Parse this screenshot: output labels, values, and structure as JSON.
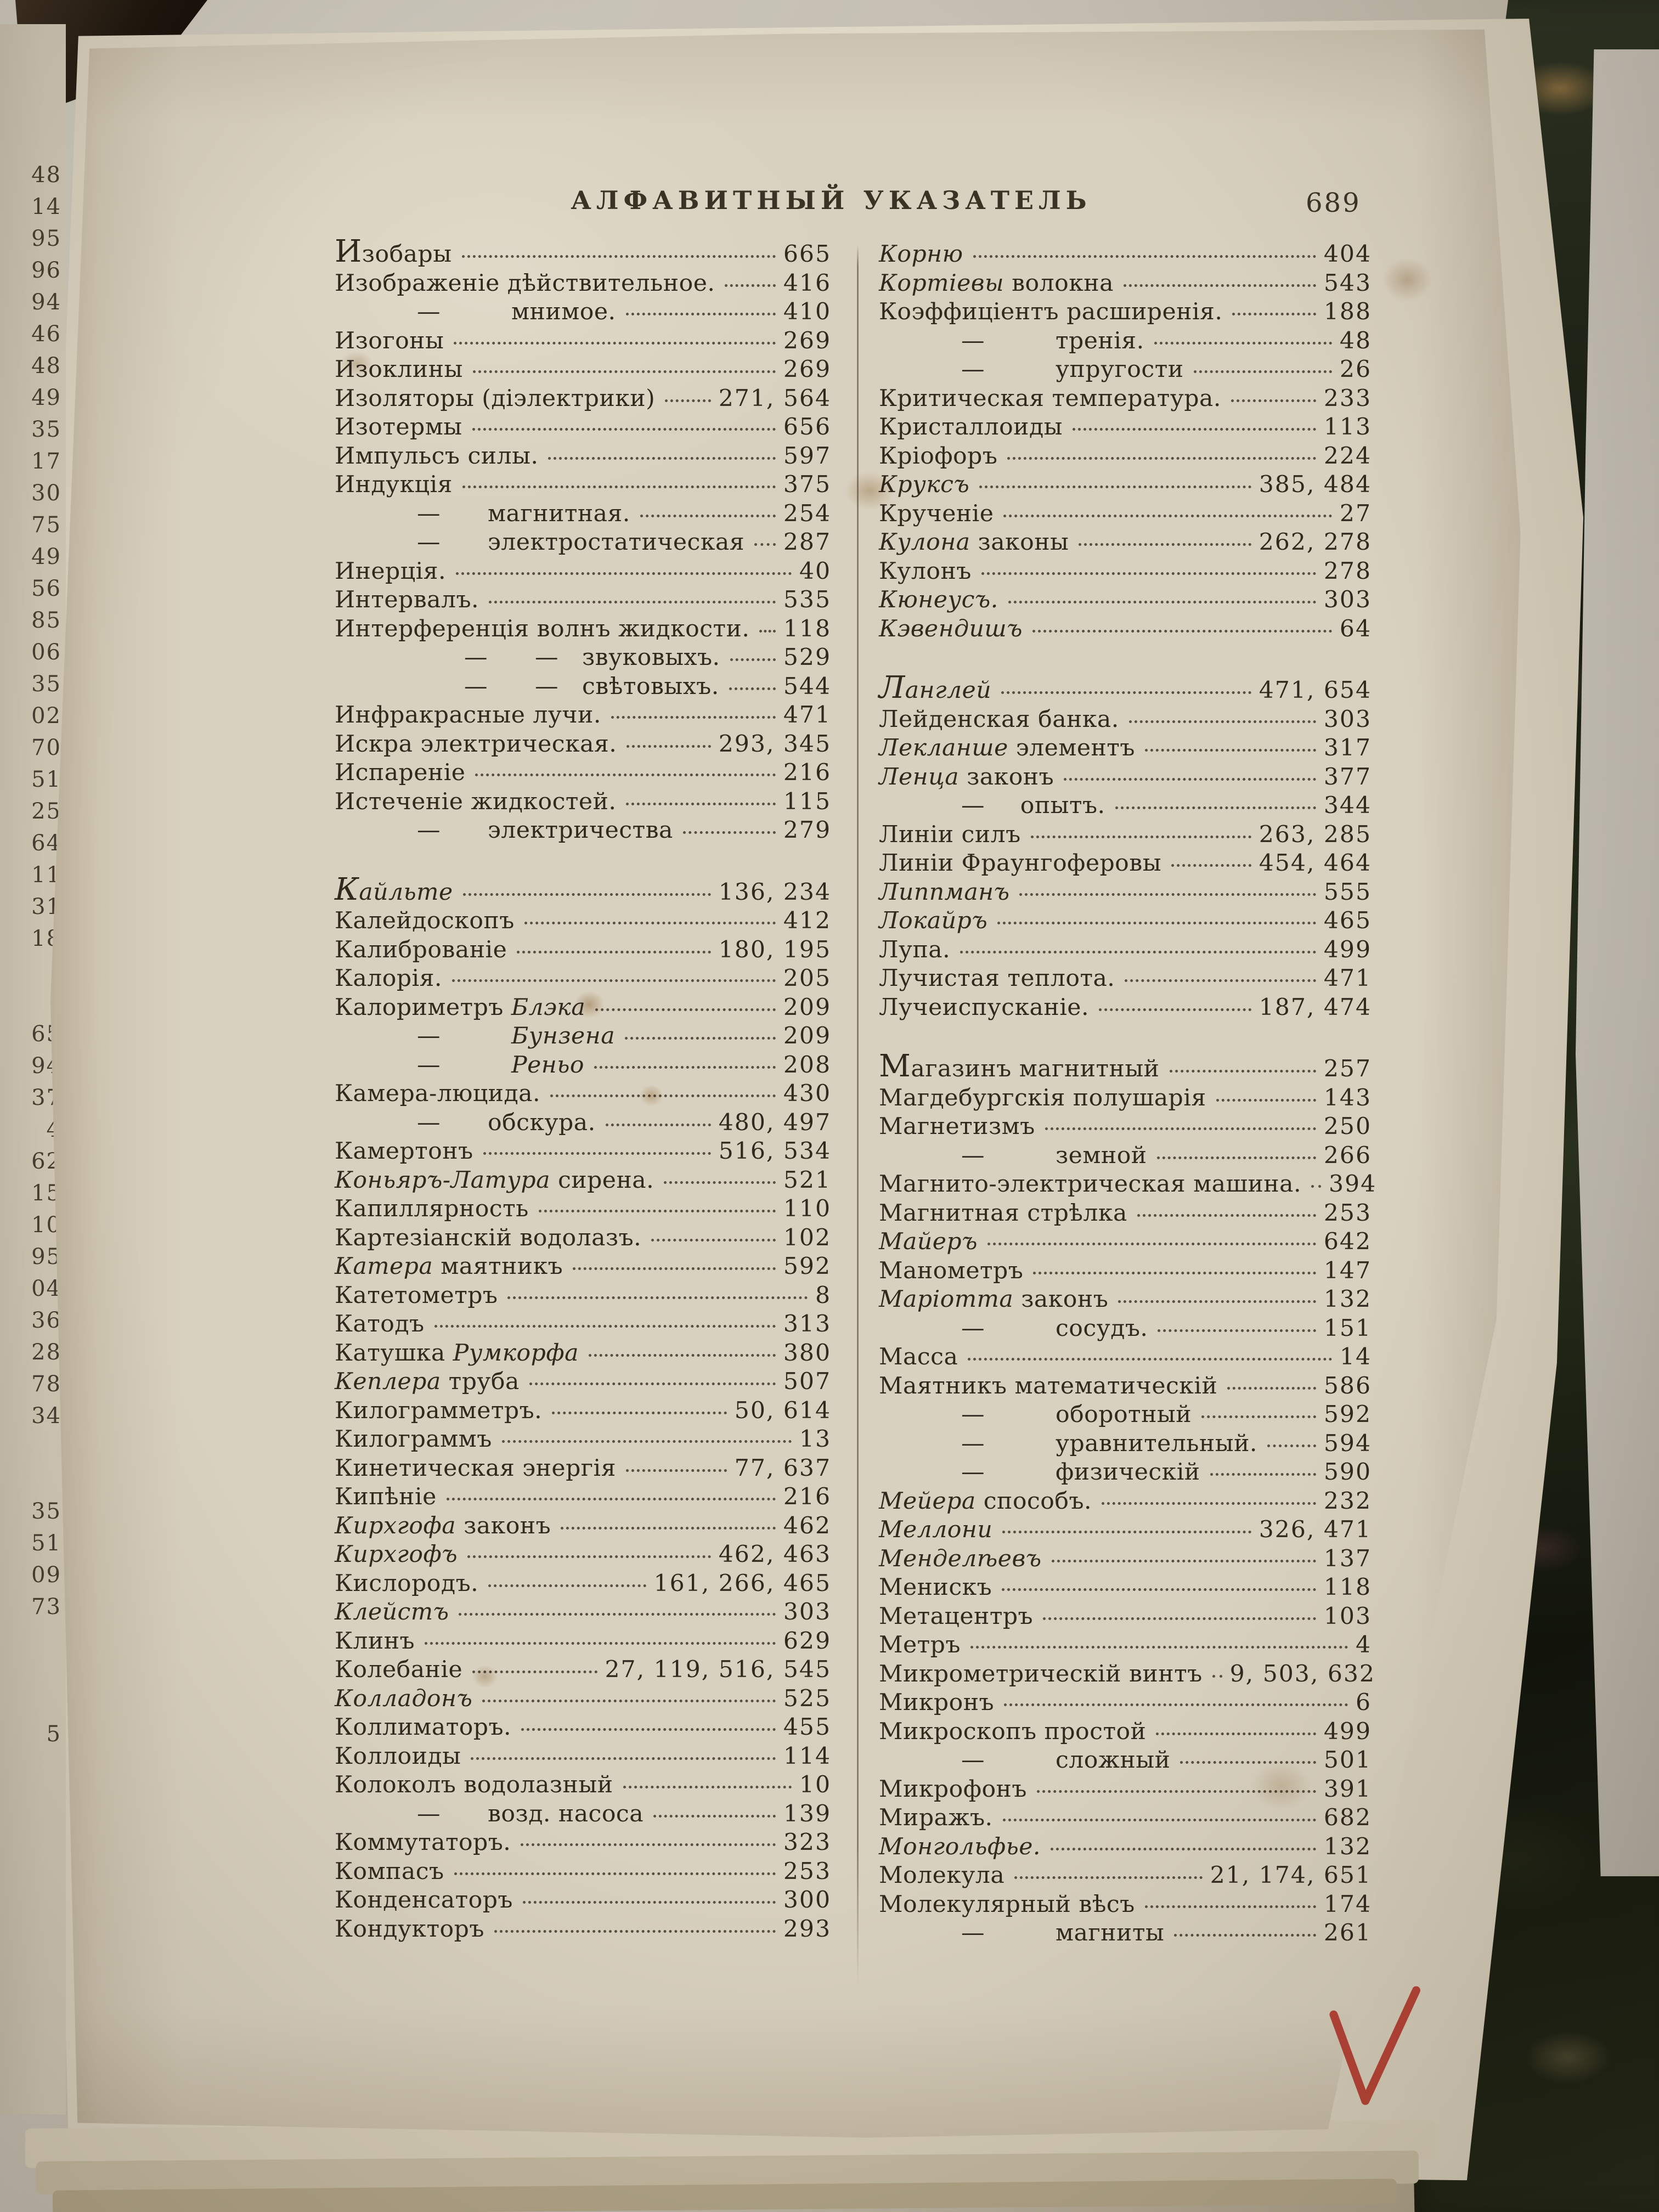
{
  "header": {
    "title": "АЛФАВИТНЫЙ УКАЗАТЕЛЬ",
    "page_number": "689"
  },
  "index": {
    "left": [
      {
        "s": [
          [
            "Изобары",
            0
          ]
        ],
        "p": "665",
        "lead": 1
      },
      {
        "s": [
          [
            "Изображеніе дѣйствительное.",
            0
          ]
        ],
        "p": "416"
      },
      {
        "s": [
          [
            "—   мнимое.",
            0
          ]
        ],
        "p": "410",
        "ind": 1
      },
      {
        "s": [
          [
            "Изогоны",
            0
          ]
        ],
        "p": "269"
      },
      {
        "s": [
          [
            "Изоклины",
            0
          ]
        ],
        "p": "269"
      },
      {
        "s": [
          [
            "Изоляторы (діэлектрики)",
            0
          ]
        ],
        "p": "271, 564"
      },
      {
        "s": [
          [
            "Изотермы",
            0
          ]
        ],
        "p": "656"
      },
      {
        "s": [
          [
            "Импульсъ силы.",
            0
          ]
        ],
        "p": "597"
      },
      {
        "s": [
          [
            "Индукція",
            0
          ]
        ],
        "p": "375"
      },
      {
        "s": [
          [
            "—  магнитная.",
            0
          ]
        ],
        "p": "254",
        "ind": 1
      },
      {
        "s": [
          [
            "—  электростатическая",
            0
          ]
        ],
        "p": "287",
        "ind": 1
      },
      {
        "s": [
          [
            "Инерція.",
            0
          ]
        ],
        "p": "40"
      },
      {
        "s": [
          [
            "Интервалъ.",
            0
          ]
        ],
        "p": "535"
      },
      {
        "s": [
          [
            "Интерференція волнъ жидкости.",
            0
          ]
        ],
        "p": "118"
      },
      {
        "s": [
          [
            "—  — звуковыхъ.",
            0
          ]
        ],
        "p": "529",
        "ind": 2
      },
      {
        "s": [
          [
            "—  — свѣтовыхъ.",
            0
          ]
        ],
        "p": "544",
        "ind": 2
      },
      {
        "s": [
          [
            "Инфракрасные лучи.",
            0
          ]
        ],
        "p": "471"
      },
      {
        "s": [
          [
            "Искра электрическая.",
            0
          ]
        ],
        "p": "293, 345"
      },
      {
        "s": [
          [
            "Испареніе",
            0
          ]
        ],
        "p": "216"
      },
      {
        "s": [
          [
            "Истеченіе жидкостей.",
            0
          ]
        ],
        "p": "115"
      },
      {
        "s": [
          [
            "—  электричества",
            0
          ]
        ],
        "p": "279",
        "ind": 1
      },
      {
        "s": [
          [
            "Кайльте",
            1
          ]
        ],
        "p": "136, 234",
        "gap": 1,
        "lead": 1
      },
      {
        "s": [
          [
            "Калейдоскопъ",
            0
          ]
        ],
        "p": "412"
      },
      {
        "s": [
          [
            "Калиброваніе",
            0
          ]
        ],
        "p": "180, 195"
      },
      {
        "s": [
          [
            "Калорія.",
            0
          ]
        ],
        "p": "205"
      },
      {
        "s": [
          [
            "Калориметръ ",
            0
          ],
          [
            "Блэка",
            1
          ]
        ],
        "p": "209"
      },
      {
        "s": [
          [
            "—   ",
            0
          ],
          [
            "Бунзена",
            1
          ]
        ],
        "p": "209",
        "ind": 1
      },
      {
        "s": [
          [
            "—   ",
            0
          ],
          [
            "Реньо",
            1
          ]
        ],
        "p": "208",
        "ind": 1
      },
      {
        "s": [
          [
            "Камера-люцида.",
            0
          ]
        ],
        "p": "430"
      },
      {
        "s": [
          [
            "—  обскура.",
            0
          ]
        ],
        "p": "480, 497",
        "ind": 1
      },
      {
        "s": [
          [
            "Камертонъ",
            0
          ]
        ],
        "p": "516, 534"
      },
      {
        "s": [
          [
            "Коньяръ-Латура",
            1
          ],
          [
            " сирена.",
            0
          ]
        ],
        "p": "521"
      },
      {
        "s": [
          [
            "Капиллярность",
            0
          ]
        ],
        "p": "110"
      },
      {
        "s": [
          [
            "Картезіанскій водолазъ.",
            0
          ]
        ],
        "p": "102"
      },
      {
        "s": [
          [
            "Катера",
            1
          ],
          [
            " маятникъ",
            0
          ]
        ],
        "p": "592"
      },
      {
        "s": [
          [
            "Катетометръ",
            0
          ]
        ],
        "p": "8"
      },
      {
        "s": [
          [
            "Катодъ",
            0
          ]
        ],
        "p": "313"
      },
      {
        "s": [
          [
            "Катушка ",
            0
          ],
          [
            "Румкорфа",
            1
          ]
        ],
        "p": "380"
      },
      {
        "s": [
          [
            "Кеплера",
            1
          ],
          [
            " труба",
            0
          ]
        ],
        "p": "507"
      },
      {
        "s": [
          [
            "Килограмметръ.",
            0
          ]
        ],
        "p": "50, 614"
      },
      {
        "s": [
          [
            "Килограммъ",
            0
          ]
        ],
        "p": "13"
      },
      {
        "s": [
          [
            "Кинетическая энергія",
            0
          ]
        ],
        "p": "77, 637"
      },
      {
        "s": [
          [
            "Кипѣніе",
            0
          ]
        ],
        "p": "216"
      },
      {
        "s": [
          [
            "Кирхгофа",
            1
          ],
          [
            " законъ",
            0
          ]
        ],
        "p": "462"
      },
      {
        "s": [
          [
            "Кирхгофъ",
            1
          ]
        ],
        "p": "462, 463"
      },
      {
        "s": [
          [
            "Кислородъ.",
            0
          ]
        ],
        "p": "161, 266, 465"
      },
      {
        "s": [
          [
            "Клейстъ",
            1
          ]
        ],
        "p": "303"
      },
      {
        "s": [
          [
            "Клинъ",
            0
          ]
        ],
        "p": "629"
      },
      {
        "s": [
          [
            "Колебаніе",
            0
          ]
        ],
        "p": "27, 119, 516, 545"
      },
      {
        "s": [
          [
            "Колладонъ",
            1
          ]
        ],
        "p": "525"
      },
      {
        "s": [
          [
            "Коллиматоръ.",
            0
          ]
        ],
        "p": "455"
      },
      {
        "s": [
          [
            "Коллоиды",
            0
          ]
        ],
        "p": "114"
      },
      {
        "s": [
          [
            "Колоколъ водолазный",
            0
          ]
        ],
        "p": "10"
      },
      {
        "s": [
          [
            "—  возд. насоса",
            0
          ]
        ],
        "p": "139",
        "ind": 1
      },
      {
        "s": [
          [
            "Коммутаторъ.",
            0
          ]
        ],
        "p": "323"
      },
      {
        "s": [
          [
            "Компасъ",
            0
          ]
        ],
        "p": "253"
      },
      {
        "s": [
          [
            "Конденсаторъ",
            0
          ]
        ],
        "p": "300"
      },
      {
        "s": [
          [
            "Кондукторъ",
            0
          ]
        ],
        "p": "293"
      }
    ],
    "right": [
      {
        "s": [
          [
            "Корню",
            1
          ]
        ],
        "p": "404"
      },
      {
        "s": [
          [
            "Кортіевы",
            1
          ],
          [
            " волокна",
            0
          ]
        ],
        "p": "543"
      },
      {
        "s": [
          [
            "Коэффиціентъ расширенія.",
            0
          ]
        ],
        "p": "188"
      },
      {
        "s": [
          [
            "—   тренія.",
            0
          ]
        ],
        "p": "48",
        "ind": 1
      },
      {
        "s": [
          [
            "—   упругости",
            0
          ]
        ],
        "p": "26",
        "ind": 1
      },
      {
        "s": [
          [
            "Критическая температура.",
            0
          ]
        ],
        "p": "233"
      },
      {
        "s": [
          [
            "Кристаллоиды",
            0
          ]
        ],
        "p": "113"
      },
      {
        "s": [
          [
            "Кріофоръ",
            0
          ]
        ],
        "p": "224"
      },
      {
        "s": [
          [
            "Круксъ",
            1
          ]
        ],
        "p": "385, 484"
      },
      {
        "s": [
          [
            "Крученіе",
            0
          ]
        ],
        "p": "27"
      },
      {
        "s": [
          [
            "Кулона",
            1
          ],
          [
            " законы",
            0
          ]
        ],
        "p": "262, 278"
      },
      {
        "s": [
          [
            "Кулонъ",
            0
          ]
        ],
        "p": "278"
      },
      {
        "s": [
          [
            "Кюнеусъ.",
            1
          ]
        ],
        "p": "303"
      },
      {
        "s": [
          [
            "Кэвендишъ",
            1
          ]
        ],
        "p": "64"
      },
      {
        "s": [
          [
            "Ланглей",
            1
          ]
        ],
        "p": "471, 654",
        "gap": 1,
        "lead": 1
      },
      {
        "s": [
          [
            "Лейденская банка.",
            0
          ]
        ],
        "p": "303"
      },
      {
        "s": [
          [
            "Лекланше",
            1
          ],
          [
            " элементъ",
            0
          ]
        ],
        "p": "317"
      },
      {
        "s": [
          [
            "Ленца",
            1
          ],
          [
            " законъ",
            0
          ]
        ],
        "p": "377"
      },
      {
        "s": [
          [
            "—  опытъ.",
            0
          ]
        ],
        "p": "344",
        "ind": 1
      },
      {
        "s": [
          [
            "Линіи силъ",
            0
          ]
        ],
        "p": "263, 285"
      },
      {
        "s": [
          [
            "Линіи Фраунгоферовы",
            0
          ]
        ],
        "p": "454, 464"
      },
      {
        "s": [
          [
            "Липпманъ",
            1
          ]
        ],
        "p": "555"
      },
      {
        "s": [
          [
            "Локайръ",
            1
          ]
        ],
        "p": "465"
      },
      {
        "s": [
          [
            "Лупа.",
            0
          ]
        ],
        "p": "499"
      },
      {
        "s": [
          [
            "Лучистая теплота.",
            0
          ]
        ],
        "p": "471"
      },
      {
        "s": [
          [
            "Лучеиспусканіе.",
            0
          ]
        ],
        "p": "187, 474"
      },
      {
        "s": [
          [
            "Магазинъ магнитный",
            0
          ]
        ],
        "p": "257",
        "gap": 1,
        "lead": 1
      },
      {
        "s": [
          [
            "Магдебургскія полушарія",
            0
          ]
        ],
        "p": "143"
      },
      {
        "s": [
          [
            "Магнетизмъ",
            0
          ]
        ],
        "p": "250"
      },
      {
        "s": [
          [
            "—   земной",
            0
          ]
        ],
        "p": "266",
        "ind": 1
      },
      {
        "s": [
          [
            "Магнито-электрическая машина.",
            0
          ]
        ],
        "p": "394"
      },
      {
        "s": [
          [
            "Магнитная стрѣлка",
            0
          ]
        ],
        "p": "253"
      },
      {
        "s": [
          [
            "Майеръ",
            1
          ]
        ],
        "p": "642"
      },
      {
        "s": [
          [
            "Манометръ",
            0
          ]
        ],
        "p": "147"
      },
      {
        "s": [
          [
            "Маріотта",
            1
          ],
          [
            " законъ",
            0
          ]
        ],
        "p": "132"
      },
      {
        "s": [
          [
            "—   сосудъ.",
            0
          ]
        ],
        "p": "151",
        "ind": 1
      },
      {
        "s": [
          [
            "Масса",
            0
          ]
        ],
        "p": "14"
      },
      {
        "s": [
          [
            "Маятникъ математическій",
            0
          ]
        ],
        "p": "586"
      },
      {
        "s": [
          [
            "—   оборотный",
            0
          ]
        ],
        "p": "592",
        "ind": 1
      },
      {
        "s": [
          [
            "—   уравнительный.",
            0
          ]
        ],
        "p": "594",
        "ind": 1
      },
      {
        "s": [
          [
            "—   физическій",
            0
          ]
        ],
        "p": "590",
        "ind": 1
      },
      {
        "s": [
          [
            "Мейера",
            1
          ],
          [
            " способъ.",
            0
          ]
        ],
        "p": "232"
      },
      {
        "s": [
          [
            "Меллони",
            1
          ]
        ],
        "p": "326, 471"
      },
      {
        "s": [
          [
            "Менделѣевъ",
            1
          ]
        ],
        "p": "137"
      },
      {
        "s": [
          [
            "Менискъ",
            0
          ]
        ],
        "p": "118"
      },
      {
        "s": [
          [
            "Метацентръ",
            0
          ]
        ],
        "p": "103"
      },
      {
        "s": [
          [
            "Метръ",
            0
          ]
        ],
        "p": "4"
      },
      {
        "s": [
          [
            "Микрометрическій винтъ",
            0
          ]
        ],
        "p": "9, 503, 632"
      },
      {
        "s": [
          [
            "Микронъ",
            0
          ]
        ],
        "p": "6"
      },
      {
        "s": [
          [
            "Микроскопъ простой",
            0
          ]
        ],
        "p": "499"
      },
      {
        "s": [
          [
            "—   сложный",
            0
          ]
        ],
        "p": "501",
        "ind": 1
      },
      {
        "s": [
          [
            "Микрофонъ",
            0
          ]
        ],
        "p": "391"
      },
      {
        "s": [
          [
            "Миражъ.",
            0
          ]
        ],
        "p": "682"
      },
      {
        "s": [
          [
            "Монгольфье.",
            1
          ]
        ],
        "p": "132"
      },
      {
        "s": [
          [
            "Молекула",
            0
          ]
        ],
        "p": "21, 174, 651"
      },
      {
        "s": [
          [
            "Молекулярный вѣсъ",
            0
          ]
        ],
        "p": "174"
      },
      {
        "s": [
          [
            "—   магниты",
            0
          ]
        ],
        "p": "261",
        "ind": 1
      }
    ]
  },
  "left_edge_numbers": [
    "48",
    "14",
    "95",
    "96",
    "94",
    "46",
    "48",
    "49",
    "35",
    "17",
    "30",
    "75",
    "49",
    "56",
    "85",
    "06",
    "35",
    "02",
    "70",
    "51",
    "25",
    "64",
    "11",
    "31",
    "18",
    "",
    "",
    "65",
    "94",
    "37",
    "4",
    "62",
    "15",
    "10",
    "95",
    "04",
    "36",
    "28",
    "78",
    "34",
    "",
    "",
    "35",
    "51",
    "09",
    "73",
    "",
    "",
    "",
    "5"
  ],
  "annotations": {
    "red_check_glyph": "✓",
    "red_check_color": "#b5372b"
  },
  "colors": {
    "paper": "#d9d1bf",
    "ink": "#32291e",
    "edge_paper": "#cfc7b4",
    "divider_rule": "#5d5142",
    "marble_dark": "#14180f",
    "marble_light": "#8d9377",
    "table": "#c4beb2",
    "check": "#b5372b"
  }
}
